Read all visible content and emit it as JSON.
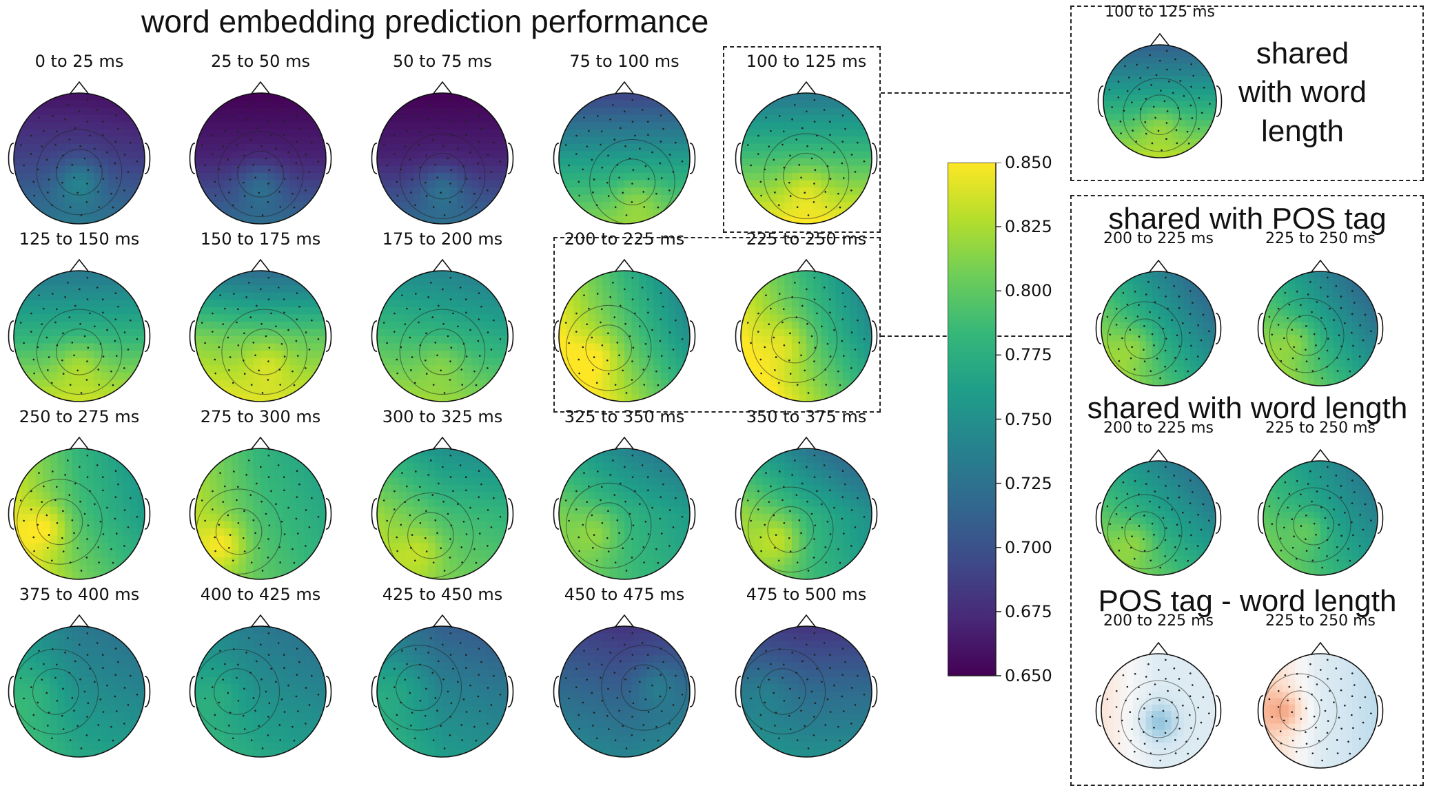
{
  "title": "word embedding prediction performance",
  "main_grid": [
    {
      "label": "0 to 25 ms",
      "mean": 0.69,
      "front": -0.03,
      "back": 0.04,
      "left": 0.0,
      "right": -0.005,
      "peak": [
        0.0,
        0.35
      ],
      "peak_val": 0.035
    },
    {
      "label": "25 to 50 ms",
      "mean": 0.67,
      "front": -0.02,
      "back": 0.05,
      "left": 0.0,
      "right": 0.0,
      "peak": [
        0.0,
        0.4
      ],
      "peak_val": 0.03
    },
    {
      "label": "50 to 75 ms",
      "mean": 0.67,
      "front": -0.02,
      "back": 0.05,
      "left": 0.0,
      "right": 0.0,
      "peak": [
        0.0,
        0.45
      ],
      "peak_val": 0.03
    },
    {
      "label": "75 to 100 ms",
      "mean": 0.76,
      "front": -0.07,
      "back": 0.055,
      "left": 0.0,
      "right": 0.0,
      "peak": [
        0.2,
        0.6
      ],
      "peak_val": 0.02
    },
    {
      "label": "100 to 125 ms",
      "mean": 0.79,
      "front": -0.06,
      "back": 0.06,
      "left": 0.0,
      "right": 0.0,
      "peak": [
        0.0,
        0.45
      ],
      "peak_val": 0.02
    },
    {
      "label": "125 to 150 ms",
      "mean": 0.78,
      "front": -0.05,
      "back": 0.055,
      "left": 0.0,
      "right": 0.0,
      "peak": [
        0.0,
        0.4
      ],
      "peak_val": 0.02
    },
    {
      "label": "150 to 175 ms",
      "mean": 0.8,
      "front": -0.08,
      "back": 0.04,
      "left": 0.01,
      "right": 0.0,
      "peak": [
        0.1,
        0.4
      ],
      "peak_val": 0.02
    },
    {
      "label": "175 to 200 ms",
      "mean": 0.78,
      "front": -0.04,
      "back": 0.04,
      "left": 0.01,
      "right": -0.01,
      "peak": [
        0.0,
        0.4
      ],
      "peak_val": 0.015
    },
    {
      "label": "200 to 225 ms",
      "mean": 0.8,
      "front": -0.02,
      "back": 0.03,
      "left": 0.05,
      "right": -0.05,
      "peak": [
        -0.4,
        0.3
      ],
      "peak_val": 0.02
    },
    {
      "label": "225 to 250 ms",
      "mean": 0.8,
      "front": -0.02,
      "back": 0.03,
      "left": 0.05,
      "right": -0.05,
      "peak": [
        -0.3,
        0.1
      ],
      "peak_val": 0.02
    },
    {
      "label": "250 to 275 ms",
      "mean": 0.79,
      "front": -0.01,
      "back": 0.02,
      "left": 0.05,
      "right": -0.03,
      "peak": [
        -0.5,
        0.2
      ],
      "peak_val": 0.03
    },
    {
      "label": "275 to 300 ms",
      "mean": 0.79,
      "front": -0.01,
      "back": 0.01,
      "left": 0.04,
      "right": -0.02,
      "peak": [
        -0.55,
        0.45
      ],
      "peak_val": 0.03
    },
    {
      "label": "300 to 325 ms",
      "mean": 0.79,
      "front": -0.04,
      "back": 0.02,
      "left": 0.03,
      "right": -0.01,
      "peak": [
        -0.3,
        0.55
      ],
      "peak_val": 0.02
    },
    {
      "label": "325 to 350 ms",
      "mean": 0.78,
      "front": -0.04,
      "back": 0.01,
      "left": 0.03,
      "right": -0.02,
      "peak": [
        -0.4,
        0.3
      ],
      "peak_val": 0.02
    },
    {
      "label": "350 to 375 ms",
      "mean": 0.78,
      "front": -0.05,
      "back": 0.01,
      "left": 0.04,
      "right": -0.03,
      "peak": [
        -0.4,
        0.4
      ],
      "peak_val": 0.03
    },
    {
      "label": "375 to 400 ms",
      "mean": 0.75,
      "front": -0.02,
      "back": 0.02,
      "left": 0.03,
      "right": -0.01,
      "peak": [
        -0.6,
        0.0
      ],
      "peak_val": 0.01
    },
    {
      "label": "400 to 425 ms",
      "mean": 0.75,
      "front": -0.02,
      "back": 0.02,
      "left": 0.02,
      "right": -0.01,
      "peak": [
        -0.6,
        0.0
      ],
      "peak_val": 0.01
    },
    {
      "label": "425 to 450 ms",
      "mean": 0.74,
      "front": -0.03,
      "back": 0.02,
      "left": 0.03,
      "right": -0.01,
      "peak": [
        -0.6,
        -0.1
      ],
      "peak_val": 0.01
    },
    {
      "label": "450 to 475 ms",
      "mean": 0.71,
      "front": -0.03,
      "back": 0.03,
      "left": 0.01,
      "right": 0.01,
      "peak": [
        0.5,
        -0.1
      ],
      "peak_val": 0.02
    },
    {
      "label": "475 to 500 ms",
      "mean": 0.72,
      "front": -0.04,
      "back": 0.03,
      "left": 0.01,
      "right": 0.0,
      "peak": [
        -0.6,
        0.0
      ],
      "peak_val": 0.01
    }
  ],
  "colorbar": {
    "cmap": "viridis",
    "min": 0.65,
    "max": 0.85,
    "ticks": [
      "0.850",
      "0.825",
      "0.800",
      "0.775",
      "0.750",
      "0.725",
      "0.700",
      "0.675",
      "0.650"
    ]
  },
  "panels": {
    "shared_word_length_top": {
      "title_lines": [
        "shared",
        "with word",
        "length"
      ],
      "map": {
        "label": "100 to 125 ms",
        "mean": 0.77,
        "front": -0.06,
        "back": 0.06,
        "left": 0.0,
        "right": 0.0,
        "peak": [
          0.0,
          0.4
        ],
        "peak_val": 0.02
      }
    },
    "shared_pos": {
      "title": "shared with POS tag",
      "maps": [
        {
          "label": "200 to 225 ms",
          "mean": 0.77,
          "front": -0.03,
          "back": 0.03,
          "left": 0.04,
          "right": -0.04,
          "peak": [
            -0.4,
            0.3
          ],
          "peak_val": 0.02
        },
        {
          "label": "225 to 250 ms",
          "mean": 0.77,
          "front": -0.03,
          "back": 0.03,
          "left": 0.04,
          "right": -0.04,
          "peak": [
            -0.4,
            0.2
          ],
          "peak_val": 0.02
        }
      ]
    },
    "shared_length": {
      "title": "shared with word length",
      "maps": [
        {
          "label": "200 to 225 ms",
          "mean": 0.77,
          "front": -0.03,
          "back": 0.03,
          "left": 0.03,
          "right": -0.03,
          "peak": [
            -0.4,
            0.4
          ],
          "peak_val": 0.02
        },
        {
          "label": "225 to 250 ms",
          "mean": 0.77,
          "front": -0.02,
          "back": 0.02,
          "left": 0.03,
          "right": -0.03,
          "peak": [
            -0.2,
            0.2
          ],
          "peak_val": 0.02
        }
      ]
    },
    "difference": {
      "title": "POS tag - word length",
      "cmap": "RdBu_r",
      "maps": [
        {
          "label": "200 to 225 ms",
          "mean": -0.01,
          "front": 0.0,
          "back": 0.0,
          "left": 0.02,
          "right": 0.0,
          "peak": [
            0.0,
            0.2
          ],
          "peak_val": -0.02
        },
        {
          "label": "225 to 250 ms",
          "mean": -0.01,
          "front": 0.0,
          "back": 0.0,
          "left": 0.03,
          "right": -0.01,
          "peak": [
            -0.6,
            0.0
          ],
          "peak_val": 0.02
        }
      ]
    }
  },
  "chart_data": {
    "type": "heatmap",
    "title": "word embedding prediction performance",
    "colorbar_range": [
      0.65,
      0.85
    ],
    "categories": [
      "0 to 25 ms",
      "25 to 50 ms",
      "50 to 75 ms",
      "75 to 100 ms",
      "100 to 125 ms",
      "125 to 150 ms",
      "150 to 175 ms",
      "175 to 200 ms",
      "200 to 225 ms",
      "225 to 250 ms",
      "250 to 275 ms",
      "275 to 300 ms",
      "300 to 325 ms",
      "325 to 350 ms",
      "350 to 375 ms",
      "375 to 400 ms",
      "400 to 425 ms",
      "425 to 450 ms",
      "450 to 475 ms",
      "475 to 500 ms"
    ],
    "values": [
      0.69,
      0.67,
      0.67,
      0.76,
      0.79,
      0.78,
      0.8,
      0.78,
      0.8,
      0.8,
      0.79,
      0.79,
      0.79,
      0.78,
      0.78,
      0.75,
      0.75,
      0.74,
      0.71,
      0.72
    ],
    "xlabel": "",
    "ylabel": ""
  }
}
